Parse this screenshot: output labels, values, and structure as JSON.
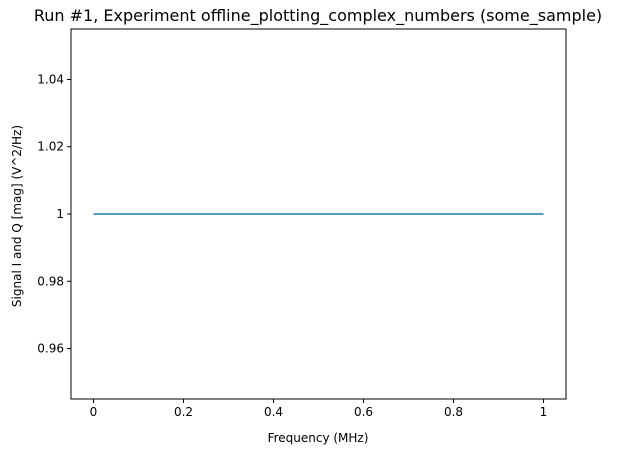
{
  "chart_data": {
    "type": "line",
    "title": "Run #1, Experiment offline_plotting_complex_numbers (some_sample)",
    "xlabel": "Frequency (MHz)",
    "ylabel": "Signal I and Q [mag] (V^2/Hz)",
    "xlim": [
      -0.05,
      1.05
    ],
    "ylim": [
      0.945,
      1.055
    ],
    "x_ticks": [
      0,
      0.2,
      0.4,
      0.6,
      0.8,
      1
    ],
    "x_tick_labels": [
      "0",
      "0.2",
      "0.4",
      "0.6",
      "0.8",
      "1"
    ],
    "y_ticks": [
      0.96,
      0.98,
      1.0,
      1.02,
      1.04
    ],
    "y_tick_labels": [
      "0.96",
      "0.98",
      "1",
      "1.02",
      "1.04"
    ],
    "grid": false,
    "series": [
      {
        "color": "#1f77b4",
        "x": [
          0,
          1
        ],
        "y": [
          1,
          1
        ]
      }
    ]
  }
}
